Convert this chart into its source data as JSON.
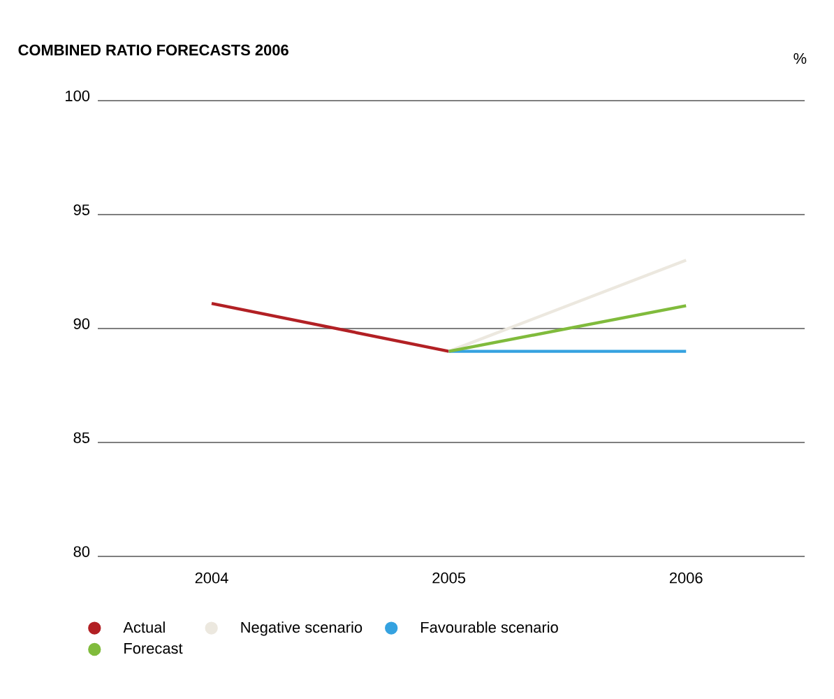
{
  "chart_data": {
    "type": "line",
    "title": "COMBINED RATIO FORECASTS 2006",
    "ylabel": "%",
    "categories": [
      "2004",
      "2005",
      "2006"
    ],
    "series": [
      {
        "name": "Actual",
        "color": "#b22024",
        "values": [
          91.1,
          89,
          null
        ]
      },
      {
        "name": "Negative scenario",
        "color": "#ece8df",
        "values": [
          null,
          89,
          93
        ]
      },
      {
        "name": "Favourable scenario",
        "color": "#35a2e0",
        "values": [
          null,
          89,
          89
        ]
      },
      {
        "name": "Forecast",
        "color": "#80bb3c",
        "values": [
          null,
          89,
          91
        ]
      }
    ],
    "ylim": [
      80,
      100
    ],
    "yticks": [
      80,
      85,
      90,
      95,
      100
    ],
    "grid": "y",
    "legend": "bottom",
    "line_style": "solid"
  }
}
